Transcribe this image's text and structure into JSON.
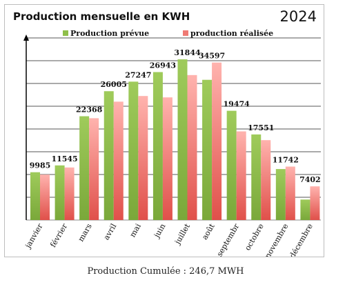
{
  "chart_data": {
    "type": "bar",
    "title": "Production mensuelle en KWH",
    "year": "2024",
    "categories": [
      "janvier",
      "février",
      "mars",
      "avril",
      "mai",
      "juin",
      "juillet",
      "août",
      "septembr",
      "octobre",
      "novembre",
      "décembre"
    ],
    "series": [
      {
        "name": "Production prévue",
        "color": "#8fbf4a",
        "values": [
          10500,
          12000,
          22800,
          28300,
          30400,
          32500,
          35300,
          30800,
          24000,
          18800,
          11200,
          4500
        ]
      },
      {
        "name": "production réalisée",
        "color": "#ef7a74",
        "values": [
          9985,
          11545,
          22368,
          26005,
          27247,
          26943,
          31844,
          34597,
          19474,
          17551,
          11742,
          7402
        ],
        "data_labels": [
          "9985",
          "11545",
          "22368",
          "26005",
          "27247",
          "26943",
          "31844",
          "34597",
          "19474",
          "17551",
          "11742",
          "7402"
        ]
      }
    ],
    "ylim": [
      0,
      40000
    ],
    "grid": true,
    "legend_position": "top",
    "xlabel": "",
    "ylabel": ""
  },
  "footer": {
    "text": "Production Cumulée : 246,7 MWH"
  }
}
